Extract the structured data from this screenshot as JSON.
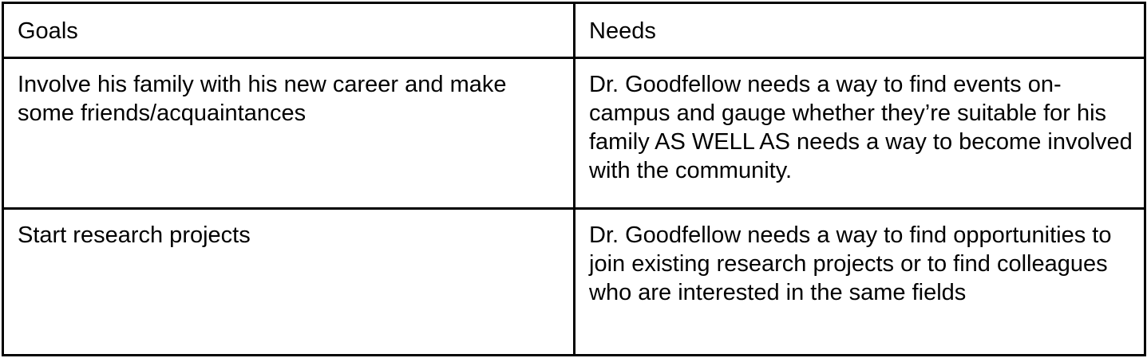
{
  "table": {
    "headers": [
      "Goals",
      "Needs"
    ],
    "rows": [
      {
        "goal": "Involve his family with his new career and make some friends/acquaintances",
        "need": "Dr. Goodfellow needs a way to find events on-campus and gauge whether they’re suitable for his family AS WELL AS needs a way to become involved with the community."
      },
      {
        "goal": "Start research projects",
        "need": "Dr. Goodfellow needs a way to find opportunities to join existing research projects or to find colleagues who are interested in the same fields"
      }
    ]
  }
}
